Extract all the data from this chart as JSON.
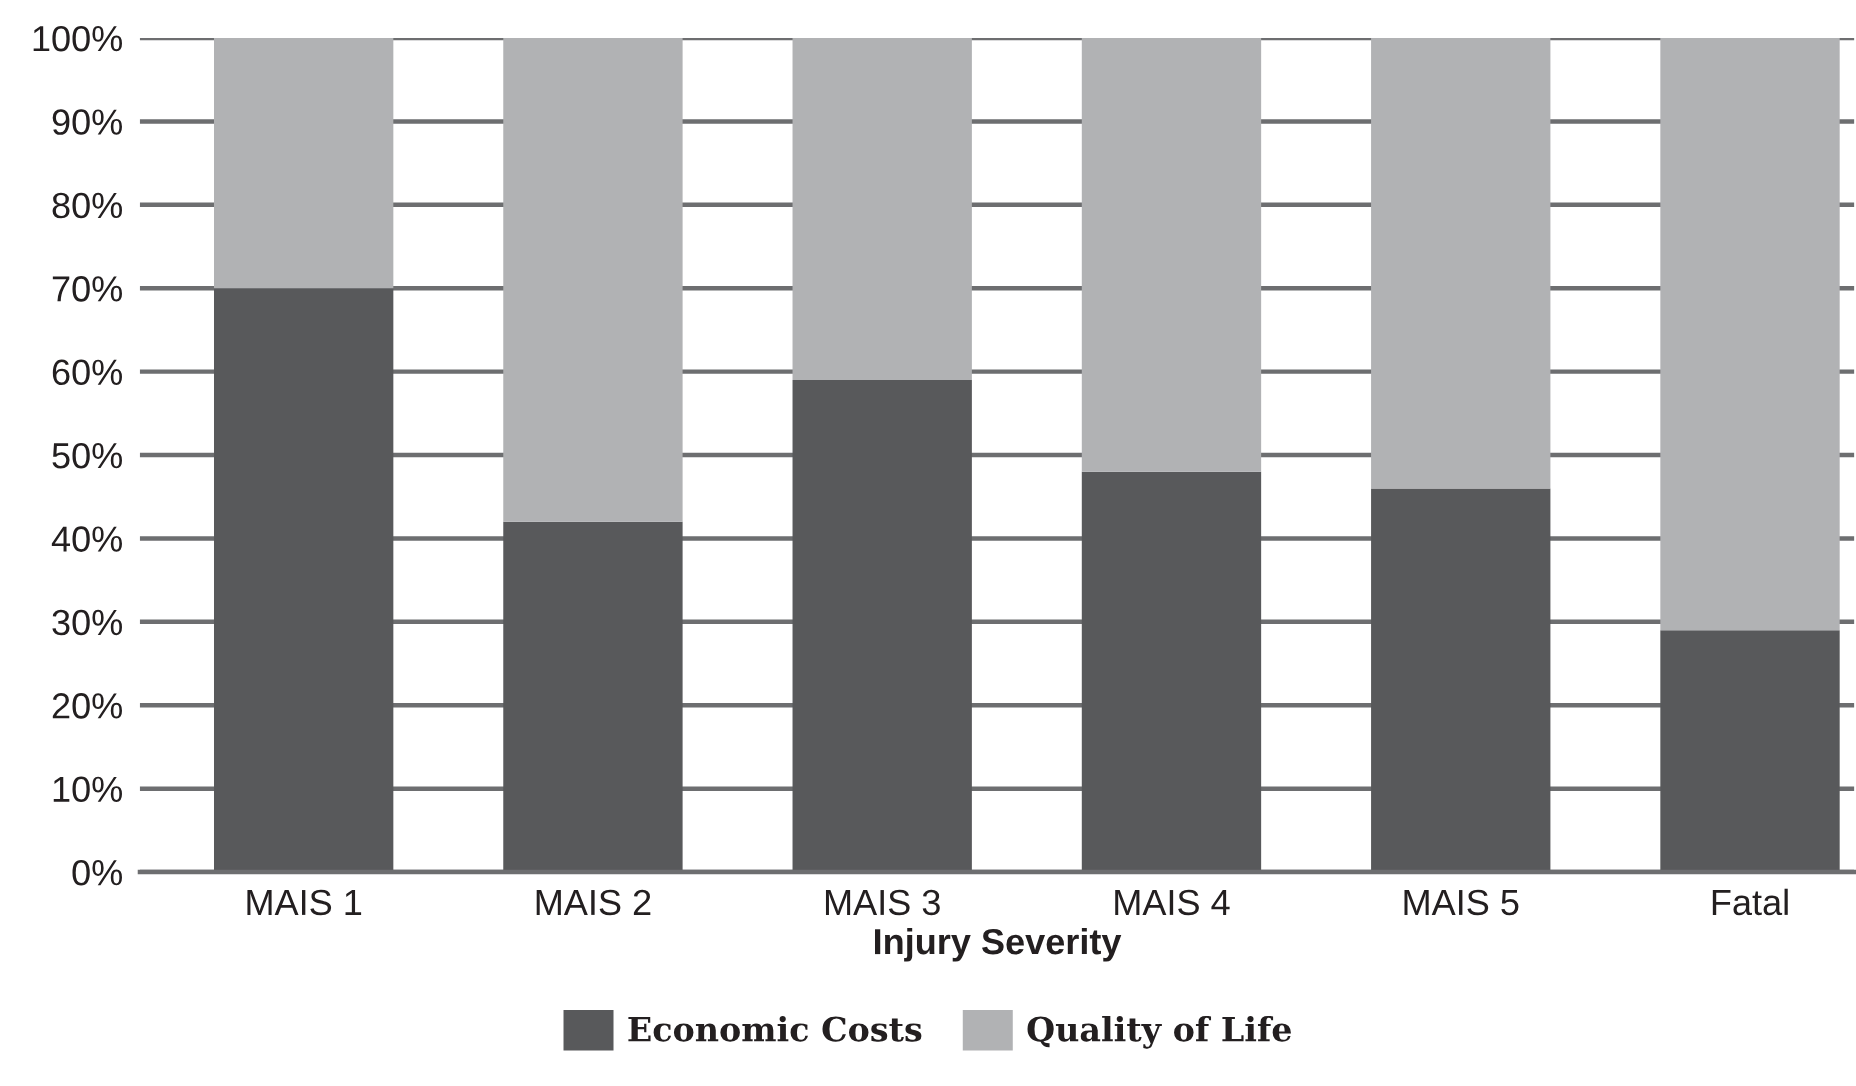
{
  "chart_data": {
    "type": "bar",
    "stacked": true,
    "categories": [
      "MAIS 1",
      "MAIS 2",
      "MAIS 3",
      "MAIS 4",
      "MAIS 5",
      "Fatal"
    ],
    "series": [
      {
        "name": "Economic Costs",
        "color": "#58595b",
        "values": [
          70,
          42,
          59,
          48,
          46,
          29
        ]
      },
      {
        "name": "Quality of Life",
        "color": "#b1b2b4",
        "values": [
          30,
          58,
          41,
          52,
          54,
          71
        ]
      }
    ],
    "xlabel": "Injury Severity",
    "ylim": [
      0,
      100
    ],
    "yticks": [
      {
        "value": 0,
        "label": "0%"
      },
      {
        "value": 10,
        "label": "10%"
      },
      {
        "value": 20,
        "label": "20%"
      },
      {
        "value": 30,
        "label": "30%"
      },
      {
        "value": 40,
        "label": "40%"
      },
      {
        "value": 50,
        "label": "50%"
      },
      {
        "value": 60,
        "label": "60%"
      },
      {
        "value": 70,
        "label": "70%"
      },
      {
        "value": 80,
        "label": "80%"
      },
      {
        "value": 90,
        "label": "90%"
      },
      {
        "value": 100,
        "label": "100%"
      }
    ],
    "grid": "y",
    "legend": "bottom"
  }
}
